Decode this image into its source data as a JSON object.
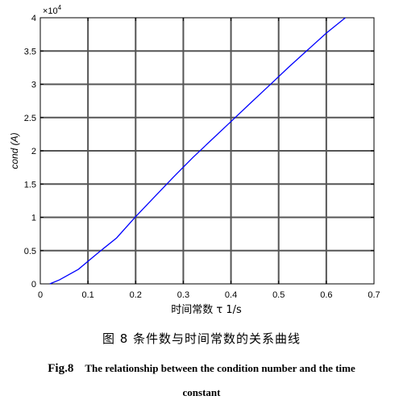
{
  "chart_data": {
    "type": "line",
    "xlabel": "时间常数 τ 1/s",
    "ylabel": "cond (A)",
    "y_exponent_label": "×10",
    "y_exponent_power": "4",
    "xlim": [
      0,
      0.7
    ],
    "ylim": [
      0,
      40000
    ],
    "x_ticks": [
      0,
      0.1,
      0.2,
      0.3,
      0.4,
      0.5,
      0.6,
      0.7
    ],
    "x_tick_labels": [
      "0",
      "0.1",
      "0.2",
      "0.3",
      "0.4",
      "0.5",
      "0.6",
      "0.7"
    ],
    "y_ticks": [
      0,
      5000,
      10000,
      15000,
      20000,
      25000,
      30000,
      35000,
      40000
    ],
    "y_tick_labels": [
      "0",
      "0.5",
      "1",
      "1.5",
      "2",
      "2.5",
      "3",
      "3.5",
      "4"
    ],
    "grid": true,
    "series": [
      {
        "color": "#0000ff",
        "x": [
          0.02,
          0.04,
          0.08,
          0.12,
          0.16,
          0.2,
          0.24,
          0.28,
          0.32,
          0.36,
          0.4,
          0.44,
          0.48,
          0.52,
          0.56,
          0.6,
          0.64
        ],
        "y": [
          0,
          600,
          2200,
          4600,
          6900,
          10100,
          13100,
          16100,
          19000,
          21700,
          24400,
          27100,
          29800,
          32500,
          35100,
          37700,
          40000
        ]
      }
    ]
  },
  "caption": {
    "cn": "图 8   条件数与时间常数的关系曲线",
    "en_num": "Fig.8",
    "en_text": "The relationship between the condition number  and  the time",
    "en_text2": "constant"
  }
}
